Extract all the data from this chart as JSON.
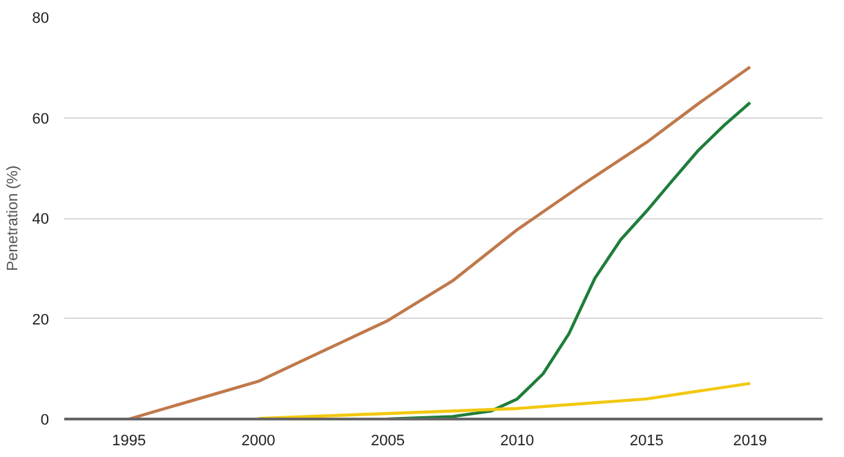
{
  "chart_data": {
    "type": "line",
    "ylabel": "Penetration (%)",
    "xlim": [
      1992.5,
      2021.8
    ],
    "ylim": [
      0,
      80
    ],
    "xticks": [
      1995,
      2000,
      2005,
      2010,
      2015,
      2019
    ],
    "yticks": [
      0,
      20,
      40,
      60,
      80
    ],
    "grid": "y",
    "marker": "none",
    "line_style": "solid",
    "series": [
      {
        "color": "#c0784a",
        "x": [
          1995,
          2000,
          2005,
          2007.5,
          2010,
          2012.5,
          2015,
          2017,
          2019
        ],
        "values": [
          0,
          7.5,
          19.6,
          27.5,
          37.7,
          46.6,
          55.1,
          62.8,
          70.1
        ]
      },
      {
        "color": "#1e7d3a",
        "x": [
          2005,
          2007.5,
          2009,
          2010,
          2011,
          2012,
          2013,
          2014,
          2015,
          2016,
          2017,
          2018,
          2019
        ],
        "values": [
          0,
          0.5,
          1.6,
          4,
          9,
          17,
          28,
          35.7,
          41.4,
          47.5,
          53.5,
          58.5,
          63
        ]
      },
      {
        "color": "#f2c80f",
        "x": [
          2000,
          2005,
          2010,
          2015,
          2019
        ],
        "values": [
          0.1,
          1.1,
          2.1,
          4,
          7.1
        ]
      }
    ]
  }
}
